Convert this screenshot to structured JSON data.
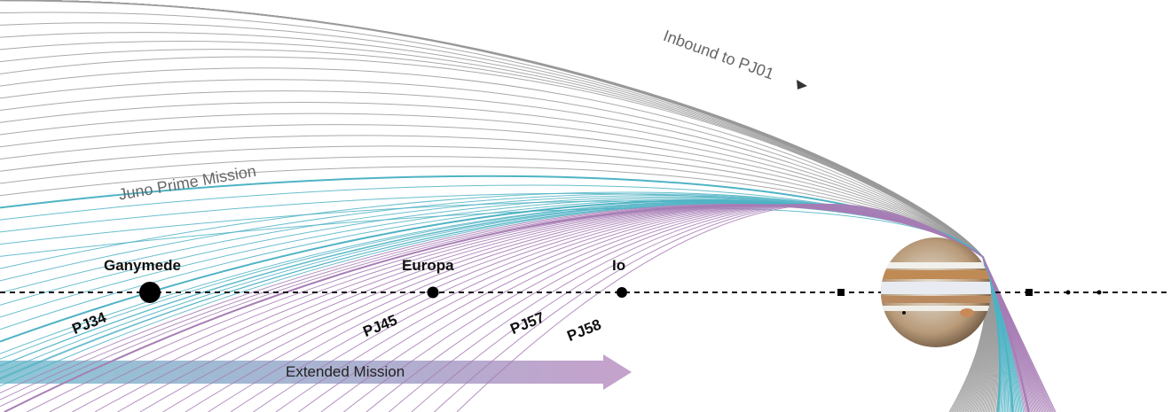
{
  "labels": {
    "inbound": "Inbound to PJ01",
    "prime_mission": "Juno Prime Mission",
    "extended_mission": "Extended Mission"
  },
  "moons": [
    {
      "name": "Ganymede"
    },
    {
      "name": "Europa"
    },
    {
      "name": "Io"
    }
  ],
  "perijoves": [
    "PJ34",
    "PJ45",
    "PJ57",
    "PJ58"
  ],
  "colors": {
    "prime_orbits": "#9a9a9a",
    "extended_teal": "#4fb3c4",
    "extended_purple": "#a77db5",
    "arrow_start": "#6fb8cc",
    "arrow_end": "#b48bbf",
    "equator_line": "#111111"
  }
}
